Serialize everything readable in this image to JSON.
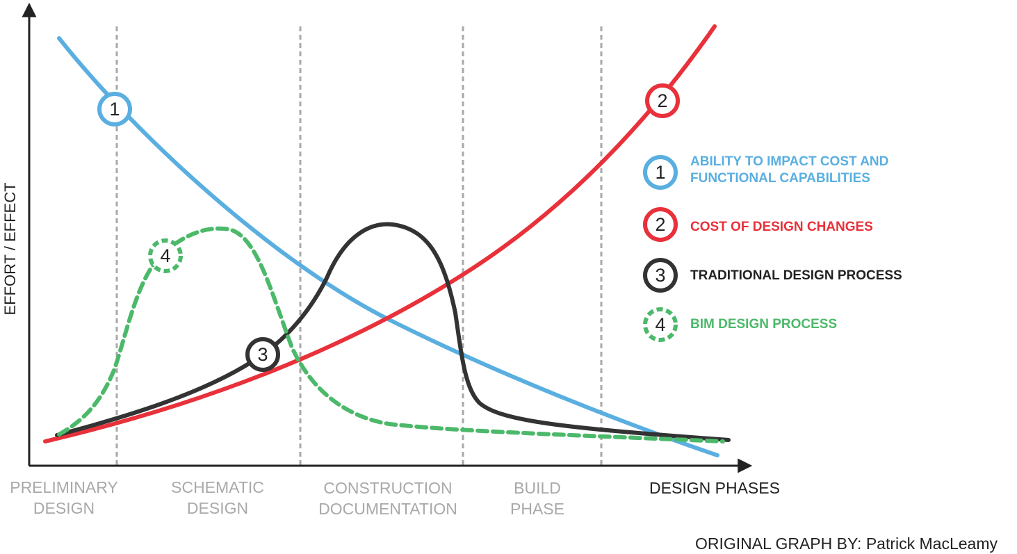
{
  "axes": {
    "y_label": "EFFORT / EFFECT",
    "x_label": "DESIGN PHASES"
  },
  "phases": [
    {
      "lines": [
        "PRELIMINARY",
        "DESIGN"
      ]
    },
    {
      "lines": [
        "SCHEMATIC",
        "DESIGN"
      ]
    },
    {
      "lines": [
        "CONSTRUCTION",
        "DOCUMENTATION"
      ]
    },
    {
      "lines": [
        "BUILD",
        "PHASE"
      ]
    }
  ],
  "curves": [
    {
      "number": "1",
      "label": [
        "ABILITY TO IMPACT COST AND",
        "FUNCTIONAL CAPABILITIES"
      ]
    },
    {
      "number": "2",
      "label": [
        "COST OF DESIGN CHANGES"
      ]
    },
    {
      "number": "3",
      "label": [
        "TRADITIONAL DESIGN PROCESS"
      ]
    },
    {
      "number": "4",
      "label": [
        "BIM DESIGN PROCESS"
      ]
    }
  ],
  "credit": "ORIGINAL GRAPH BY: Patrick MacLeamy"
}
